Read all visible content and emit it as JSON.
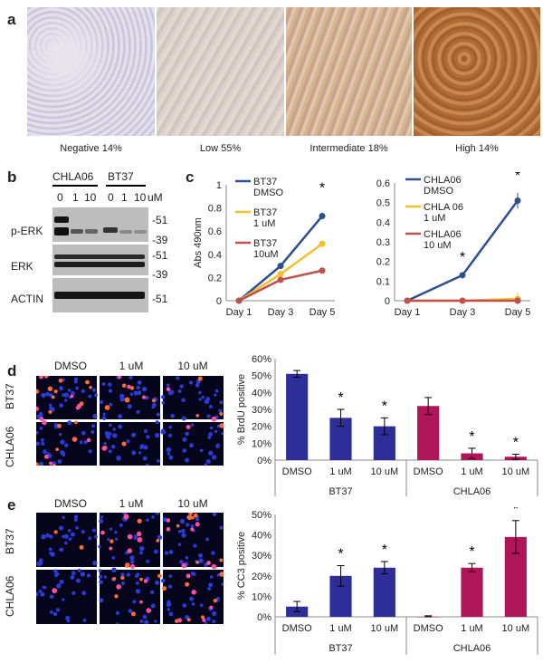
{
  "panel_a": {
    "letter": "a",
    "captions": [
      "Negative 14%",
      "Low 55%",
      "Intermediate 18%",
      "High 14%"
    ]
  },
  "panel_b": {
    "letter": "b",
    "groups": [
      "CHLA06",
      "BT37"
    ],
    "doses": [
      "0",
      "1",
      "10",
      "0",
      "1",
      "10"
    ],
    "dose_unit": "uM",
    "rows": [
      "p-ERK",
      "ERK",
      "ACTIN"
    ],
    "markers": [
      "-51",
      "-39",
      "-51",
      "-39",
      "-51"
    ]
  },
  "panel_c": {
    "letter": "c",
    "star": "*"
  },
  "panel_d": {
    "letter": "d",
    "cols": [
      "DMSO",
      "1 uM",
      "10 uM"
    ],
    "rows": [
      "BT37",
      "CHLA06"
    ]
  },
  "panel_e": {
    "letter": "e",
    "cols": [
      "DMSO",
      "1 uM",
      "10 uM"
    ],
    "rows": [
      "BT37",
      "CHLA06"
    ]
  },
  "colors": {
    "dmso": "#2e4f8f",
    "one_um": "#f2c12e",
    "ten_um": "#c0504d",
    "bt37_bar": "#2e2e9a",
    "chla06_bar": "#b0155a"
  },
  "chart_data": [
    {
      "type": "line",
      "x": [
        "Day 1",
        "Day 3",
        "Day 5"
      ],
      "ylabel": "Abs 490nm",
      "ylim": [
        0,
        1
      ],
      "yticks": [
        "0",
        "0.2",
        "0.4",
        "0.6",
        "0.8",
        "1"
      ],
      "series": [
        {
          "name": "BT37 DMSO",
          "label_lines": [
            "BT37",
            "DMSO"
          ],
          "values": [
            0,
            0.3,
            0.73
          ],
          "err": [
            0,
            0.01,
            0.03
          ]
        },
        {
          "name": "BT37 1 uM",
          "label_lines": [
            "BT37",
            "1 uM"
          ],
          "values": [
            0,
            0.23,
            0.49
          ],
          "err": [
            0,
            0.01,
            0.025
          ]
        },
        {
          "name": "BT37 10uM",
          "label_lines": [
            "BT37",
            "10uM"
          ],
          "values": [
            0,
            0.18,
            0.26
          ],
          "err": [
            0,
            0.005,
            0.005
          ]
        }
      ],
      "annotations": [
        {
          "x": "Day 5",
          "text": "*"
        }
      ]
    },
    {
      "type": "line",
      "x": [
        "Day 1",
        "Day 3",
        "Day 5"
      ],
      "ylim": [
        0,
        0.6
      ],
      "yticks": [
        "0",
        "0.1",
        "0.2",
        "0.3",
        "0.4",
        "0.5",
        "0.6"
      ],
      "series": [
        {
          "name": "CHLA06 DMSO",
          "label_lines": [
            "CHLA06",
            "DMSO"
          ],
          "values": [
            0,
            0.13,
            0.51
          ],
          "err": [
            0,
            0.005,
            0.04
          ]
        },
        {
          "name": "CHLA 06 1 uM",
          "label_lines": [
            "CHLA 06",
            "1 uM"
          ],
          "values": [
            0,
            0.0,
            0.01
          ],
          "err": [
            0,
            0.005,
            0.03
          ]
        },
        {
          "name": "CHLA06 10 uM",
          "label_lines": [
            "CHLA06",
            "10 uM"
          ],
          "values": [
            0,
            0.0,
            0.0
          ],
          "err": [
            0,
            0.0,
            0.0
          ]
        }
      ],
      "annotations": [
        {
          "x": "Day 3",
          "text": "*"
        },
        {
          "x": "Day 5",
          "text": "*"
        }
      ]
    },
    {
      "type": "bar",
      "categories": [
        "DMSO",
        "1 uM",
        "10 uM",
        "DMSO",
        "1 uM",
        "10 uM"
      ],
      "groups": [
        "BT37",
        "CHLA06"
      ],
      "ylabel": "% BrdU positive",
      "ylim": [
        0,
        60
      ],
      "yticks": [
        "0%",
        "10%",
        "20%",
        "30%",
        "40%",
        "50%",
        "60%"
      ],
      "values": [
        51,
        25,
        20,
        32,
        4,
        2
      ],
      "err": [
        2,
        5,
        5,
        5,
        3,
        1.5
      ],
      "stars": [
        false,
        true,
        true,
        false,
        true,
        true
      ],
      "star": "*"
    },
    {
      "type": "bar",
      "categories": [
        "DMSO",
        "1 uM",
        "10 uM",
        "DMSO",
        "1 uM",
        "10 uM"
      ],
      "groups": [
        "BT37",
        "CHLA06"
      ],
      "ylabel": "% CC3 positive",
      "ylim": [
        0,
        50
      ],
      "yticks": [
        "0%",
        "10%",
        "20%",
        "30%",
        "40%",
        "50%"
      ],
      "values": [
        5,
        20,
        24,
        0,
        24,
        39
      ],
      "err": [
        2.5,
        5,
        3,
        0.5,
        2,
        8
      ],
      "stars": [
        false,
        true,
        true,
        false,
        true,
        true
      ],
      "star": "*"
    }
  ]
}
